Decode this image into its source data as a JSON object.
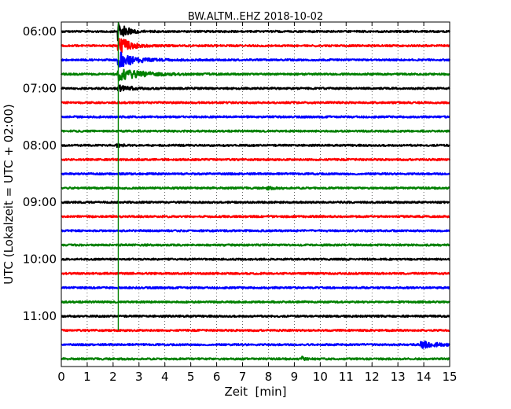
{
  "chart_data": {
    "type": "line",
    "title": "BW.ALTM..EHZ 2018-10-02",
    "xlabel": "Zeit  [min]",
    "ylabel": "UTC (Lokalzeit = UTC + 02:00)",
    "xlim": [
      0,
      15
    ],
    "x_ticks": [
      0,
      1,
      2,
      3,
      4,
      5,
      6,
      7,
      8,
      9,
      10,
      11,
      12,
      13,
      14,
      15
    ],
    "x_tick_labels": [
      "0",
      "1",
      "2",
      "3",
      "4",
      "5",
      "6",
      "7",
      "8",
      "9",
      "10",
      "11",
      "12",
      "13",
      "14",
      "15"
    ],
    "y_tick_labels": [
      {
        "label": "06:00",
        "row": 0
      },
      {
        "label": "07:00",
        "row": 4
      },
      {
        "label": "08:00",
        "row": 8
      },
      {
        "label": "09:00",
        "row": 12
      },
      {
        "label": "10:00",
        "row": 16
      },
      {
        "label": "11:00",
        "row": 20
      }
    ],
    "grid": {
      "x": true,
      "style": "dotted"
    },
    "colors": [
      "#000000",
      "#ff0000",
      "#0000ff",
      "#008000"
    ],
    "trace_start": "06:00",
    "trace_minutes": 15,
    "traces": 24,
    "events": [
      {
        "row": 0,
        "minute": 2.2,
        "amplitude": 3.0,
        "duration": 0.3,
        "note": "clipped onset"
      },
      {
        "row": 1,
        "minute": 2.2,
        "amplitude": 3.0,
        "duration": 0.4
      },
      {
        "row": 2,
        "minute": 2.2,
        "amplitude": 2.5,
        "duration": 0.6
      },
      {
        "row": 3,
        "minute": 2.2,
        "amplitude": 1.7,
        "duration": 0.9
      },
      {
        "row": 4,
        "minute": 2.2,
        "amplitude": 0.9,
        "duration": 0.5
      },
      {
        "row": 8,
        "minute": 2.15,
        "amplitude": 0.5,
        "duration": 0.2
      },
      {
        "row": 11,
        "minute": 7.95,
        "amplitude": 0.35,
        "duration": 0.2
      },
      {
        "row": 22,
        "minute": 13.9,
        "amplitude": 1.0,
        "duration": 0.6
      },
      {
        "row": 23,
        "minute": 9.3,
        "amplitude": 0.6,
        "duration": 0.1
      }
    ]
  }
}
